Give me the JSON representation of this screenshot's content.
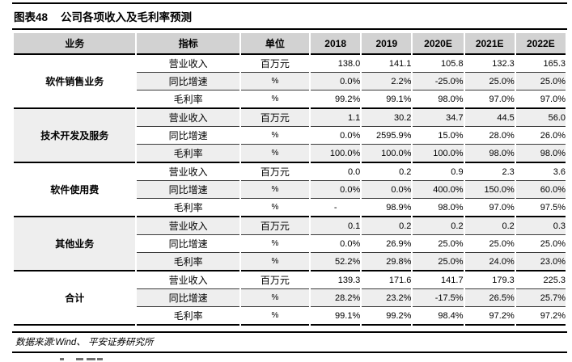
{
  "title": {
    "figure_label": "图表48",
    "text": "公司各项收入及毛利率预测"
  },
  "table": {
    "columns": [
      "业务",
      "指标",
      "单位",
      "2018",
      "2019",
      "2020E",
      "2021E",
      "2022E"
    ],
    "groups": [
      {
        "business": "软件销售业务",
        "rows": [
          {
            "indicator": "营业收入",
            "unit": "百万元",
            "values": [
              "138.0",
              "141.1",
              "105.8",
              "132.3",
              "165.3"
            ]
          },
          {
            "indicator": "同比增速",
            "unit": "%",
            "values": [
              "0.0%",
              "2.2%",
              "-25.0%",
              "25.0%",
              "25.0%"
            ]
          },
          {
            "indicator": "毛利率",
            "unit": "%",
            "values": [
              "99.2%",
              "99.1%",
              "98.0%",
              "97.0%",
              "97.0%"
            ]
          }
        ]
      },
      {
        "business": "技术开发及服务",
        "rows": [
          {
            "indicator": "营业收入",
            "unit": "百万元",
            "values": [
              "1.1",
              "30.2",
              "34.7",
              "44.5",
              "56.0"
            ]
          },
          {
            "indicator": "同比增速",
            "unit": "%",
            "values": [
              "0.0%",
              "2595.9%",
              "15.0%",
              "28.0%",
              "26.0%"
            ]
          },
          {
            "indicator": "毛利率",
            "unit": "%",
            "values": [
              "100.0%",
              "100.0%",
              "100.0%",
              "98.0%",
              "98.0%"
            ]
          }
        ]
      },
      {
        "business": "软件使用费",
        "rows": [
          {
            "indicator": "营业收入",
            "unit": "百万元",
            "values": [
              "0.0",
              "0.2",
              "0.9",
              "2.3",
              "3.6"
            ]
          },
          {
            "indicator": "同比增速",
            "unit": "%",
            "values": [
              "0.0%",
              "0.0%",
              "400.0%",
              "150.0%",
              "60.0%"
            ]
          },
          {
            "indicator": "毛利率",
            "unit": "%",
            "values": [
              "-",
              "98.9%",
              "98.0%",
              "97.0%",
              "97.5%"
            ]
          }
        ]
      },
      {
        "business": "其他业务",
        "rows": [
          {
            "indicator": "营业收入",
            "unit": "百万元",
            "values": [
              "0.1",
              "0.2",
              "0.2",
              "0.2",
              "0.3"
            ]
          },
          {
            "indicator": "同比增速",
            "unit": "%",
            "values": [
              "0.0%",
              "26.9%",
              "25.0%",
              "25.0%",
              "25.0%"
            ]
          },
          {
            "indicator": "毛利率",
            "unit": "%",
            "values": [
              "52.2%",
              "29.8%",
              "25.0%",
              "24.0%",
              "23.0%"
            ]
          }
        ]
      },
      {
        "business": "合计",
        "rows": [
          {
            "indicator": "营业收入",
            "unit": "百万元",
            "values": [
              "139.3",
              "171.6",
              "141.7",
              "179.3",
              "225.3"
            ]
          },
          {
            "indicator": "同比增速",
            "unit": "%",
            "values": [
              "28.2%",
              "23.2%",
              "-17.5%",
              "26.5%",
              "25.7%"
            ]
          },
          {
            "indicator": "毛利率",
            "unit": "%",
            "values": [
              "99.1%",
              "99.2%",
              "98.4%",
              "97.2%",
              "97.2%"
            ]
          }
        ]
      }
    ],
    "source_note": "数据来源:Wind、 平安证券研究所"
  },
  "colors": {
    "header_bg": "#d2d2d2",
    "row_alt_bg": "#eeeeee",
    "border": "#000000",
    "text": "#000000"
  }
}
